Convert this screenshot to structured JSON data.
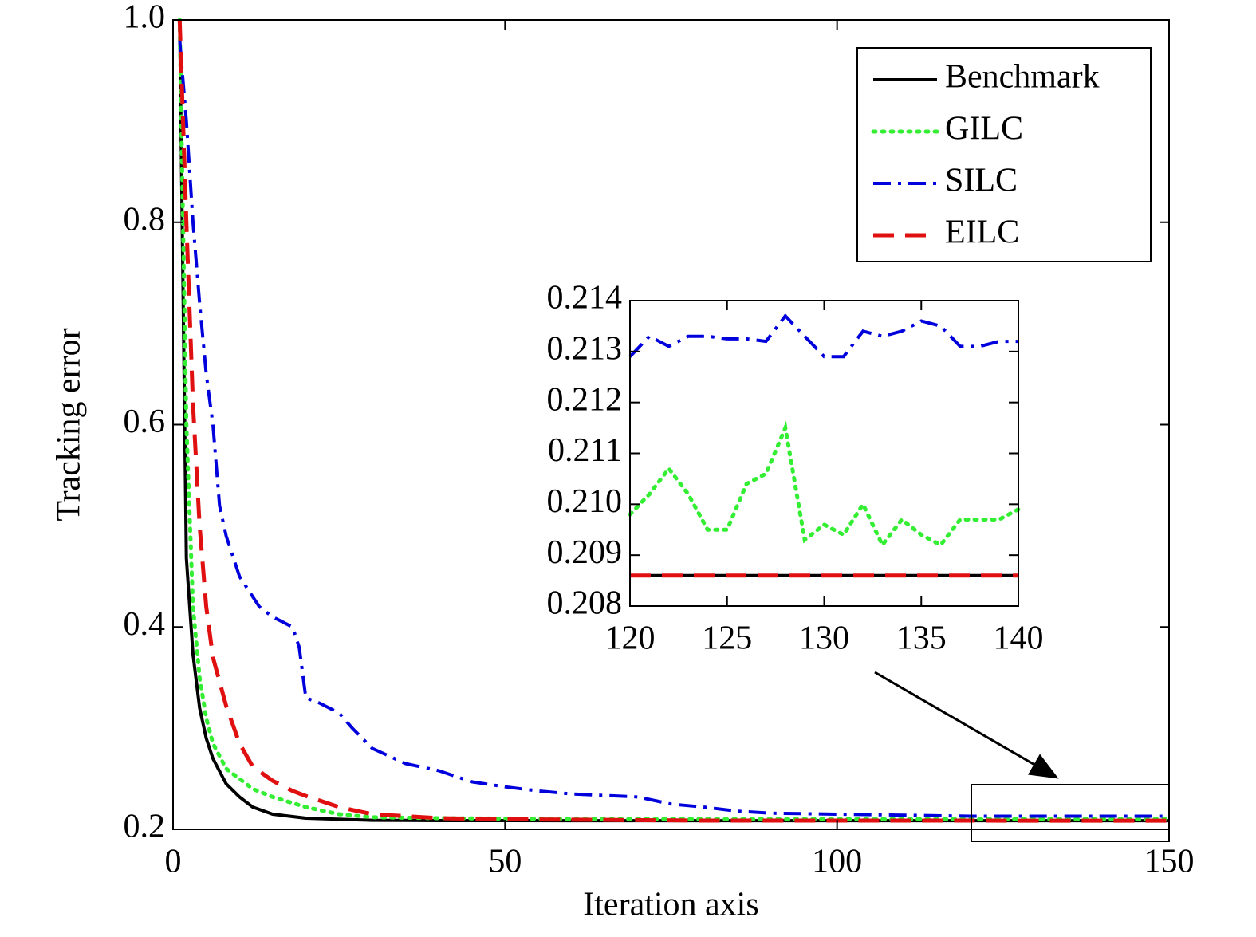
{
  "chart_data": [
    {
      "type": "line",
      "xlabel": "Iteration axis",
      "ylabel": "Tracking error",
      "xlim": [
        0,
        150
      ],
      "ylim": [
        0.2,
        1.0
      ],
      "xticks": [
        0,
        50,
        100,
        150
      ],
      "yticks": [
        0.2,
        0.4,
        0.6,
        0.8,
        {
          "value": 1,
          "label": "1.0"
        }
      ],
      "legend": "upper right",
      "series": [
        {
          "name": "Benchmark",
          "color": "#000000",
          "dash": "solid",
          "x": [
            1,
            2,
            3,
            4,
            5,
            6,
            8,
            10,
            12,
            15,
            20,
            30,
            40,
            60,
            100,
            150
          ],
          "values": [
            1.0,
            0.468,
            0.373,
            0.32,
            0.29,
            0.27,
            0.245,
            0.232,
            0.222,
            0.215,
            0.211,
            0.209,
            0.2087,
            0.2086,
            0.2086,
            0.2086
          ]
        },
        {
          "name": "GILC",
          "color": "#33ee33",
          "dash": "dotted",
          "x": [
            1,
            2,
            3,
            4,
            5,
            6,
            8,
            10,
            12,
            15,
            20,
            25,
            30,
            40,
            60,
            100,
            150
          ],
          "values": [
            1.0,
            0.6,
            0.42,
            0.35,
            0.31,
            0.285,
            0.26,
            0.25,
            0.24,
            0.232,
            0.222,
            0.215,
            0.212,
            0.211,
            0.2102,
            0.21,
            0.21
          ]
        },
        {
          "name": "SILC",
          "color": "#0000dd",
          "dash": "dashdot",
          "x": [
            1,
            2,
            3,
            4,
            5,
            6,
            7,
            8,
            10,
            12,
            13,
            15,
            18,
            19,
            20,
            22,
            25,
            27,
            30,
            35,
            40,
            45,
            50,
            55,
            60,
            70,
            75,
            80,
            85,
            90,
            100,
            110,
            120,
            130,
            140,
            150
          ],
          "values": [
            0.98,
            0.9,
            0.8,
            0.72,
            0.65,
            0.6,
            0.52,
            0.49,
            0.45,
            0.43,
            0.42,
            0.41,
            0.4,
            0.38,
            0.33,
            0.325,
            0.315,
            0.3,
            0.28,
            0.265,
            0.258,
            0.247,
            0.242,
            0.238,
            0.235,
            0.232,
            0.225,
            0.222,
            0.218,
            0.216,
            0.215,
            0.214,
            0.213,
            0.213,
            0.213,
            0.213
          ]
        },
        {
          "name": "EILC",
          "color": "#e01010",
          "dash": "dashed",
          "x": [
            1,
            2,
            3,
            4,
            5,
            6,
            8,
            10,
            12,
            15,
            18,
            20,
            25,
            30,
            40,
            50,
            80,
            150
          ],
          "values": [
            1.0,
            0.8,
            0.62,
            0.5,
            0.42,
            0.37,
            0.322,
            0.285,
            0.262,
            0.248,
            0.238,
            0.233,
            0.222,
            0.215,
            0.211,
            0.21,
            0.2087,
            0.2086
          ]
        }
      ]
    },
    {
      "type": "line",
      "xlim": [
        120,
        140
      ],
      "ylim": [
        0.208,
        0.214
      ],
      "xticks": [
        120,
        125,
        130,
        135,
        140
      ],
      "yticks": [
        0.208,
        0.209,
        {
          "value": 0.21,
          "label": "0.210"
        },
        0.211,
        0.212,
        0.213,
        0.214
      ],
      "series": [
        {
          "color": "#000000",
          "dash": "solid",
          "x": [
            120,
            140
          ],
          "values": [
            0.2086,
            0.2086
          ]
        },
        {
          "color": "#33ee33",
          "dash": "dotted",
          "x": [
            120,
            121,
            122,
            123,
            124,
            125,
            126,
            127,
            128,
            129,
            130,
            131,
            132,
            133,
            134,
            135,
            136,
            137,
            138,
            139,
            140
          ],
          "values": [
            0.2098,
            0.2102,
            0.2107,
            0.2102,
            0.2095,
            0.2095,
            0.2104,
            0.2106,
            0.2115,
            0.2093,
            0.2096,
            0.2094,
            0.21,
            0.2092,
            0.2097,
            0.2094,
            0.2092,
            0.2097,
            0.2097,
            0.2097,
            0.2099
          ]
        },
        {
          "color": "#0000dd",
          "dash": "dashdot",
          "x": [
            120,
            121,
            122,
            123,
            124,
            125,
            126,
            127,
            128,
            129,
            130,
            131,
            132,
            133,
            134,
            135,
            136,
            137,
            138,
            139,
            140
          ],
          "values": [
            0.2129,
            0.2133,
            0.2131,
            0.2133,
            0.2133,
            0.21325,
            0.21325,
            0.2132,
            0.2137,
            0.2133,
            0.2129,
            0.2129,
            0.2134,
            0.2133,
            0.2134,
            0.2136,
            0.2135,
            0.2131,
            0.2131,
            0.2132,
            0.2132
          ]
        },
        {
          "color": "#e01010",
          "dash": "dashed",
          "x": [
            120,
            140
          ],
          "values": [
            0.2086,
            0.2086
          ]
        }
      ]
    }
  ]
}
